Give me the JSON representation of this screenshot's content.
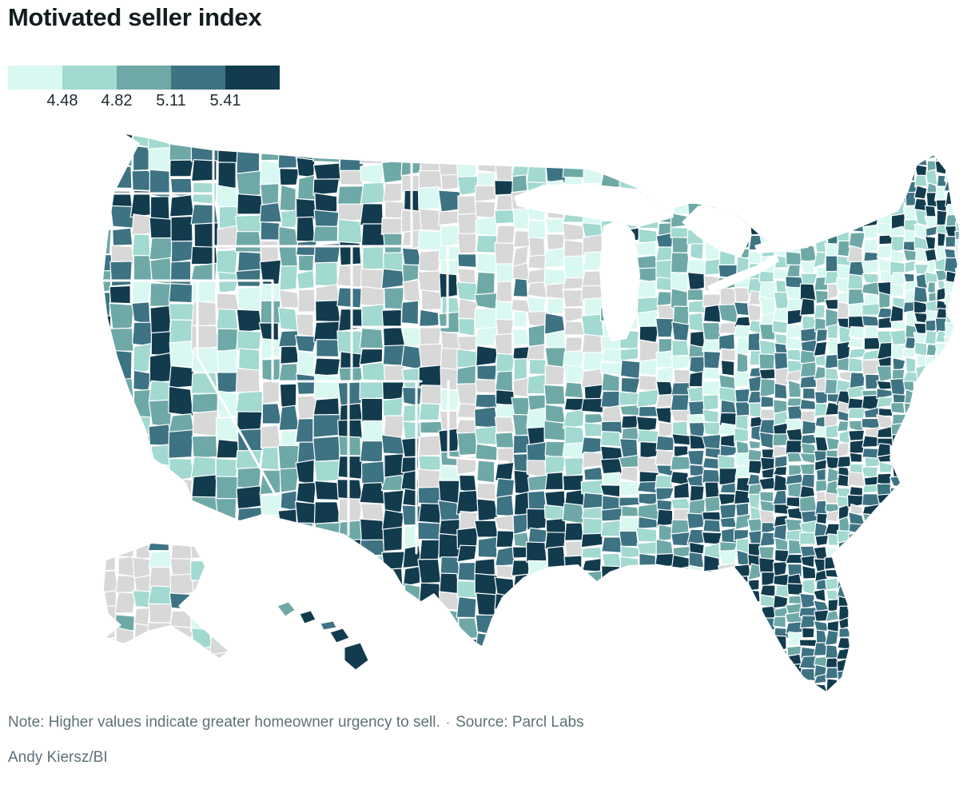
{
  "title": "Motivated seller index",
  "legend": {
    "thresholds": [
      "4.48",
      "4.82",
      "5.11",
      "5.41"
    ],
    "colors": [
      "#d9f8f2",
      "#a2d9d1",
      "#6ea9a7",
      "#3d7383",
      "#123c4e"
    ],
    "no_data_color": "#d8d8d8"
  },
  "footer": {
    "note": "Note: Higher values indicate greater homeowner urgency to sell.",
    "separator": "·",
    "source": "Source: Parcl Labs",
    "byline": "Andy Kiersz/BI"
  },
  "chart_data": {
    "type": "choropleth",
    "geography": "United States counties (Albers projection with Alaska and Hawaii insets)",
    "metric": "Motivated seller index",
    "title": "Motivated seller index",
    "scale_breaks": [
      4.48,
      4.82,
      5.11,
      5.41
    ],
    "scale_colors": [
      "#d9f8f2",
      "#a2d9d1",
      "#6ea9a7",
      "#3d7383",
      "#123c4e"
    ],
    "no_data_color": "#d8d8d8",
    "legend_position": "top-left",
    "county_borders": "#ffffff",
    "high_value_regions": [
      "Texas",
      "Florida",
      "Arizona and New Mexico",
      "Gulf Coast and Deep South",
      "Southeast coast (Georgia/Carolinas)",
      "Pacific Northwest coast",
      "Colorado Rockies",
      "Northern California",
      "Northern Maine"
    ],
    "low_value_regions": [
      "Upper Midwest (Minnesota/Wisconsin/Iowa/Illinois)",
      "Nevada Great Basin",
      "Upstate New York and New England coast"
    ],
    "no_data_regions": [
      "Great Plains belt (eastern Montana, Dakotas, Nebraska, Kansas)",
      "most of Alaska"
    ],
    "note": "Higher values indicate greater homeowner urgency to sell.",
    "source": "Parcl Labs",
    "credit": "Andy Kiersz/BI"
  }
}
